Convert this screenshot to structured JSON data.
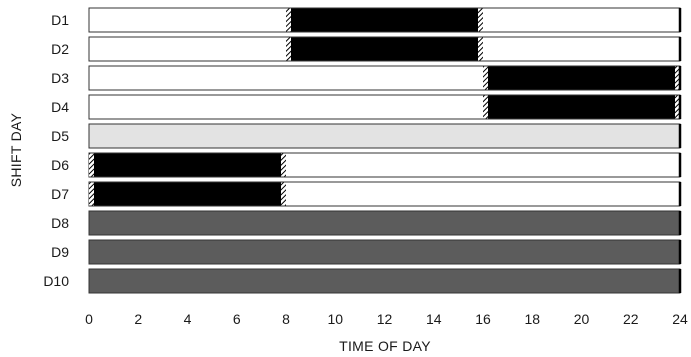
{
  "chart_data": {
    "type": "bar",
    "orientation": "horizontal",
    "subtype": "gantt",
    "xlabel": "TIME OF DAY",
    "ylabel": "SHIFT DAY",
    "xlim": [
      0,
      24
    ],
    "xticks": [
      0,
      2,
      4,
      6,
      8,
      10,
      12,
      14,
      16,
      18,
      20,
      22,
      24
    ],
    "categories": [
      "D1",
      "D2",
      "D3",
      "D4",
      "D5",
      "D6",
      "D7",
      "D8",
      "D9",
      "D10"
    ],
    "grid": false,
    "colors": {
      "background_bar": "#ffffff",
      "shift": "#000000",
      "d5_fill": "#e3e3e3",
      "d8_d10_fill": "#5c5c5c",
      "outline": "#333333"
    },
    "rows": [
      {
        "label": "D1",
        "fill": "#ffffff",
        "segments": [
          {
            "start": 8,
            "end": 16
          }
        ]
      },
      {
        "label": "D2",
        "fill": "#ffffff",
        "segments": [
          {
            "start": 8,
            "end": 16
          }
        ]
      },
      {
        "label": "D3",
        "fill": "#ffffff",
        "segments": [
          {
            "start": 16,
            "end": 24
          }
        ]
      },
      {
        "label": "D4",
        "fill": "#ffffff",
        "segments": [
          {
            "start": 16,
            "end": 24
          }
        ]
      },
      {
        "label": "D5",
        "fill": "#e3e3e3",
        "segments": []
      },
      {
        "label": "D6",
        "fill": "#ffffff",
        "segments": [
          {
            "start": 0,
            "end": 8
          }
        ]
      },
      {
        "label": "D7",
        "fill": "#ffffff",
        "segments": [
          {
            "start": 0,
            "end": 8
          }
        ]
      },
      {
        "label": "D8",
        "fill": "#5c5c5c",
        "segments": []
      },
      {
        "label": "D9",
        "fill": "#5c5c5c",
        "segments": []
      },
      {
        "label": "D10",
        "fill": "#5c5c5c",
        "segments": []
      }
    ]
  }
}
